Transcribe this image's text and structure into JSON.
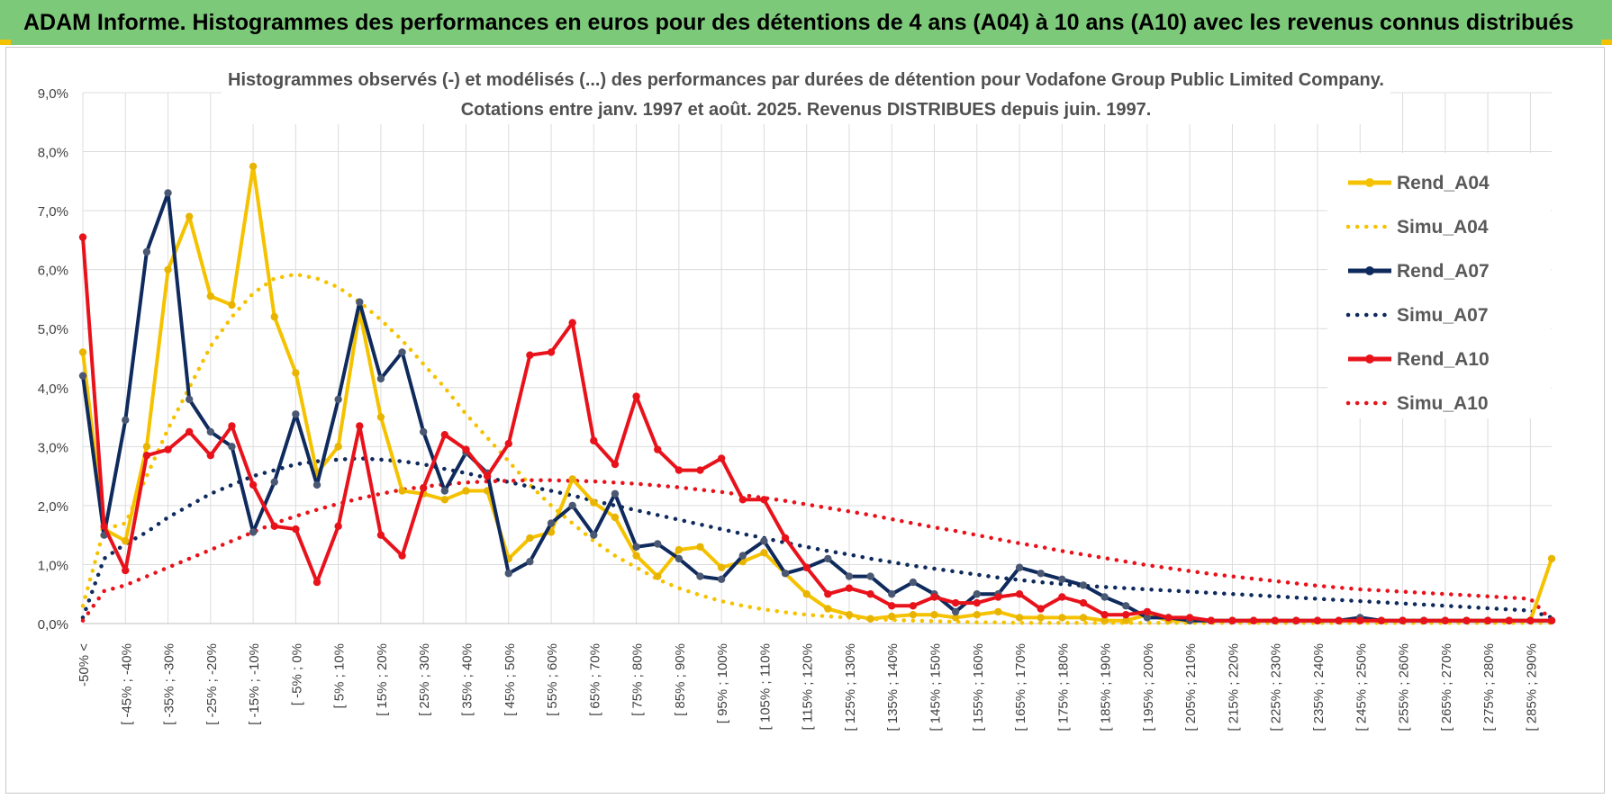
{
  "banner": {
    "title": "ADAM Informe. Histogrammes des performances en euros pour des détentions de 4 ans (A04) à 10 ans (A10) avec les revenus connus distribués"
  },
  "colors": {
    "banner_bg": "#7dc97a",
    "a04": "#f5c200",
    "a07": "#0f2a5c",
    "a10": "#e8121b",
    "grid": "#dcdcdc"
  },
  "chart_data": {
    "type": "line",
    "title": "Histogrammes observés (-) et modélisés (...) des performances par durées de détention pour Vodafone Group Public Limited Company.",
    "subtitle": "Cotations entre janv. 1997 et août. 2025. Revenus DISTRIBUES depuis juin. 1997.",
    "xlabel": "",
    "ylabel": "",
    "ylim": [
      0,
      9
    ],
    "y_unit": "%",
    "yticks": [
      "0,0%",
      "1,0%",
      "2,0%",
      "3,0%",
      "4,0%",
      "5,0%",
      "6,0%",
      "7,0%",
      "8,0%",
      "9,0%"
    ],
    "grid": true,
    "legend_position": "right",
    "x_tick_labels": [
      "-50% <",
      "[ -45% ; -40%",
      "[ -35% ; -30%",
      "[ -25% ; -20%",
      "[ -15% ; -10%",
      "[ -5% ; 0%",
      "[ 5% ; 10%",
      "[ 15% ; 20%",
      "[ 25% ; 30%",
      "[ 35% ; 40%",
      "[ 45% ; 50%",
      "[ 55% ; 60%",
      "[ 65% ; 70%",
      "[ 75% ; 80%",
      "[ 85% ; 90%",
      "[ 95% ; 100%",
      "[ 105% ; 110%",
      "[ 115% ; 120%",
      "[ 125% ; 130%",
      "[ 135% ; 140%",
      "[ 145% ; 150%",
      "[ 155% ; 160%",
      "[ 165% ; 170%",
      "[ 175% ; 180%",
      "[ 185% ; 190%",
      "[ 195% ; 200%",
      "[ 205% ; 210%",
      "[ 215% ; 220%",
      "[ 225% ; 230%",
      "[ 235% ; 240%",
      "[ 245% ; 250%",
      "[ 255% ; 260%",
      "[ 265% ; 270%",
      "[ 275% ; 280%",
      "[ 285% ; 290%"
    ],
    "series": [
      {
        "name": "Rend_A04",
        "style": "solid",
        "color": "#f5c200",
        "values": [
          4.6,
          1.6,
          1.4,
          3.0,
          6.0,
          6.9,
          5.55,
          5.4,
          7.75,
          5.2,
          4.25,
          2.55,
          3.0,
          5.3,
          3.5,
          2.25,
          2.2,
          2.1,
          2.25,
          2.25,
          1.1,
          1.45,
          1.55,
          2.45,
          2.05,
          1.8,
          1.15,
          0.8,
          1.25,
          1.3,
          0.95,
          1.05,
          1.2,
          0.85,
          0.5,
          0.25,
          0.15,
          0.08,
          0.12,
          0.15,
          0.15,
          0.1,
          0.15,
          0.2,
          0.1,
          0.1,
          0.1,
          0.1,
          0.05,
          0.05,
          0.15,
          0.05,
          0.05,
          0.05,
          0.05,
          0.05,
          0.05,
          0.05,
          0.05,
          0.05,
          0.05,
          0.05,
          0.05,
          0.05,
          0.05,
          0.05,
          0.05,
          0.05,
          0.05,
          1.1
        ]
      },
      {
        "name": "Simu_A04",
        "style": "dotted",
        "color": "#f5c200",
        "values": [
          0.3,
          1.6,
          1.7,
          2.5,
          3.3,
          4.0,
          4.7,
          5.2,
          5.6,
          5.85,
          5.92,
          5.85,
          5.7,
          5.45,
          5.15,
          4.8,
          4.4,
          4.0,
          3.55,
          3.15,
          2.75,
          2.35,
          2.0,
          1.7,
          1.4,
          1.15,
          0.95,
          0.75,
          0.6,
          0.48,
          0.38,
          0.3,
          0.24,
          0.19,
          0.15,
          0.12,
          0.1,
          0.08,
          0.06,
          0.05,
          0.04,
          0.03,
          0.02,
          0.02,
          0.01,
          0.01,
          0.01,
          0.01,
          0.01,
          0.01,
          0.01,
          0.01,
          0.01,
          0.01,
          0.01,
          0.01,
          0.01,
          0.01,
          0.01,
          0.01,
          0.01,
          0.01,
          0.01,
          0.01,
          0.01,
          0.01,
          0.01,
          0.01,
          0.01,
          0.01
        ]
      },
      {
        "name": "Rend_A07",
        "style": "solid",
        "color": "#0f2a5c",
        "values": [
          4.2,
          1.5,
          3.45,
          6.3,
          7.3,
          3.8,
          3.25,
          3.0,
          1.55,
          2.4,
          3.55,
          2.35,
          3.8,
          5.45,
          4.15,
          4.6,
          3.25,
          2.25,
          2.9,
          2.55,
          0.85,
          1.05,
          1.7,
          2.0,
          1.5,
          2.2,
          1.3,
          1.35,
          1.1,
          0.8,
          0.75,
          1.15,
          1.4,
          0.85,
          0.95,
          1.1,
          0.8,
          0.8,
          0.5,
          0.7,
          0.5,
          0.2,
          0.5,
          0.5,
          0.95,
          0.85,
          0.75,
          0.65,
          0.45,
          0.3,
          0.1,
          0.1,
          0.05,
          0.05,
          0.05,
          0.05,
          0.05,
          0.05,
          0.05,
          0.05,
          0.1,
          0.05,
          0.05,
          0.05,
          0.05,
          0.05,
          0.05,
          0.05,
          0.05,
          0.05
        ]
      },
      {
        "name": "Simu_A07",
        "style": "dotted",
        "color": "#0f2a5c",
        "values": [
          0.1,
          1.1,
          1.35,
          1.55,
          1.8,
          2.0,
          2.2,
          2.35,
          2.5,
          2.6,
          2.7,
          2.75,
          2.78,
          2.8,
          2.78,
          2.75,
          2.7,
          2.62,
          2.55,
          2.47,
          2.4,
          2.32,
          2.25,
          2.17,
          2.08,
          2.0,
          1.92,
          1.84,
          1.76,
          1.68,
          1.6,
          1.52,
          1.45,
          1.37,
          1.3,
          1.23,
          1.17,
          1.1,
          1.04,
          0.98,
          0.93,
          0.88,
          0.83,
          0.78,
          0.74,
          0.7,
          0.67,
          0.64,
          0.62,
          0.6,
          0.58,
          0.56,
          0.54,
          0.52,
          0.5,
          0.48,
          0.46,
          0.44,
          0.42,
          0.4,
          0.38,
          0.36,
          0.34,
          0.32,
          0.3,
          0.28,
          0.26,
          0.24,
          0.22,
          0.1
        ]
      },
      {
        "name": "Rend_A10",
        "style": "solid",
        "color": "#e8121b",
        "values": [
          6.55,
          1.65,
          0.9,
          2.85,
          2.95,
          3.25,
          2.85,
          3.35,
          2.35,
          1.65,
          1.6,
          0.7,
          1.65,
          3.35,
          1.5,
          1.15,
          2.3,
          3.2,
          2.95,
          2.5,
          3.05,
          4.55,
          4.6,
          5.1,
          3.1,
          2.7,
          3.85,
          2.95,
          2.6,
          2.6,
          2.8,
          2.1,
          2.1,
          1.45,
          0.95,
          0.5,
          0.6,
          0.5,
          0.3,
          0.3,
          0.45,
          0.35,
          0.35,
          0.45,
          0.5,
          0.25,
          0.45,
          0.35,
          0.15,
          0.15,
          0.2,
          0.1,
          0.1,
          0.05,
          0.05,
          0.05,
          0.05,
          0.05,
          0.05,
          0.05,
          0.05,
          0.05,
          0.05,
          0.05,
          0.05,
          0.05,
          0.05,
          0.05,
          0.05,
          0.05
        ]
      },
      {
        "name": "Simu_A10",
        "style": "dotted",
        "color": "#e8121b",
        "values": [
          0.05,
          0.55,
          0.65,
          0.8,
          0.95,
          1.1,
          1.25,
          1.4,
          1.55,
          1.7,
          1.82,
          1.93,
          2.03,
          2.12,
          2.2,
          2.27,
          2.32,
          2.36,
          2.39,
          2.41,
          2.42,
          2.43,
          2.43,
          2.42,
          2.41,
          2.39,
          2.37,
          2.34,
          2.31,
          2.27,
          2.23,
          2.18,
          2.13,
          2.08,
          2.02,
          1.96,
          1.9,
          1.84,
          1.77,
          1.7,
          1.63,
          1.57,
          1.5,
          1.43,
          1.36,
          1.3,
          1.23,
          1.17,
          1.11,
          1.05,
          0.99,
          0.94,
          0.89,
          0.84,
          0.8,
          0.76,
          0.72,
          0.68,
          0.64,
          0.61,
          0.58,
          0.56,
          0.54,
          0.52,
          0.5,
          0.48,
          0.46,
          0.44,
          0.42,
          0.05
        ]
      }
    ]
  }
}
